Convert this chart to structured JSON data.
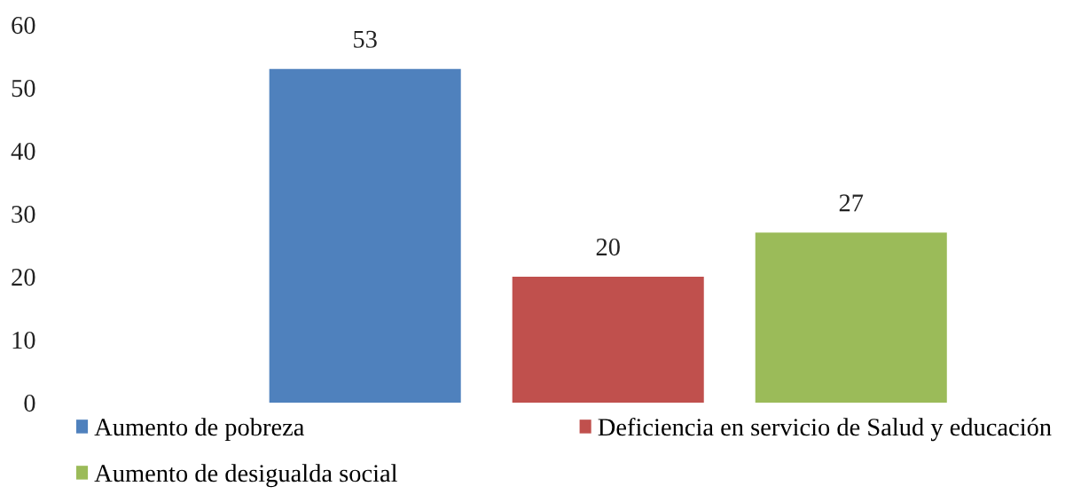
{
  "chart_data": {
    "type": "bar",
    "categories": [
      null
    ],
    "series": [
      {
        "name": "Aumento de pobreza",
        "color": "#4f81bd",
        "values": [
          53
        ]
      },
      {
        "name": "Deficiencia en servicio de Salud y educación",
        "color": "#c0504d",
        "values": [
          20
        ]
      },
      {
        "name": "Aumento de desigualda social",
        "color": "#9bbb59",
        "values": [
          27
        ]
      }
    ],
    "ylim": [
      0,
      60
    ],
    "yticks": [
      0,
      10,
      20,
      30,
      40,
      50,
      60
    ],
    "data_labels": true,
    "legend": "bottom",
    "tick_labels": "y"
  }
}
